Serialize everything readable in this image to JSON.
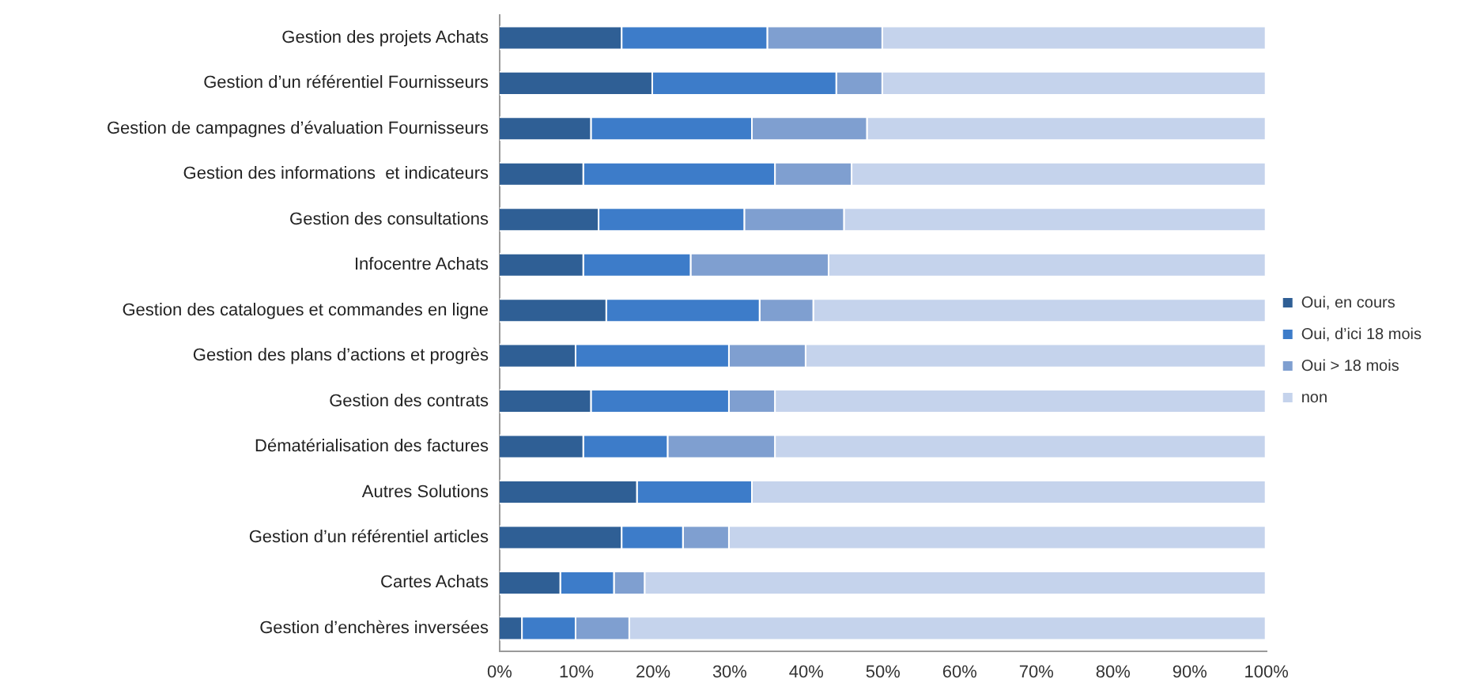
{
  "chart_data": {
    "type": "bar",
    "orientation": "horizontal",
    "stacked": true,
    "categories": [
      "Gestion des projets Achats",
      "Gestion d’un référentiel Fournisseurs",
      "Gestion de campagnes d’évaluation Fournisseurs",
      "Gestion des informations  et indicateurs",
      "Gestion des consultations",
      "Infocentre Achats",
      "Gestion des catalogues et commandes en ligne",
      "Gestion des plans d’actions et progrès",
      "Gestion des contrats",
      "Dématérialisation des factures",
      "Autres Solutions",
      "Gestion d’un référentiel articles",
      "Cartes Achats",
      "Gestion d’enchères inversées"
    ],
    "series": [
      {
        "name": "Oui, en cours",
        "color": "#2f5f95",
        "values": [
          16,
          20,
          12,
          11,
          13,
          11,
          14,
          10,
          12,
          11,
          18,
          16,
          8,
          3
        ]
      },
      {
        "name": "Oui, d’ici 18 mois",
        "color": "#3d7cc9",
        "values": [
          19,
          24,
          21,
          25,
          19,
          14,
          20,
          20,
          18,
          11,
          15,
          8,
          7,
          7
        ]
      },
      {
        "name": "Oui > 18 mois",
        "color": "#7f9fd0",
        "values": [
          15,
          6,
          15,
          10,
          13,
          18,
          7,
          10,
          6,
          14,
          0,
          6,
          4,
          7
        ]
      },
      {
        "name": "non",
        "color": "#c5d3ec",
        "values": [
          50,
          50,
          52,
          54,
          55,
          57,
          59,
          60,
          64,
          64,
          67,
          70,
          81,
          83
        ]
      }
    ],
    "xlim": [
      0,
      100
    ],
    "xticks": [
      {
        "value": 0,
        "label": "0%"
      },
      {
        "value": 10,
        "label": "10%"
      },
      {
        "value": 20,
        "label": "20%"
      },
      {
        "value": 30,
        "label": "30%"
      },
      {
        "value": 40,
        "label": "40%"
      },
      {
        "value": 50,
        "label": "50%"
      },
      {
        "value": 60,
        "label": "60%"
      },
      {
        "value": 70,
        "label": "70%"
      },
      {
        "value": 80,
        "label": "80%"
      },
      {
        "value": 90,
        "label": "90%"
      },
      {
        "value": 100,
        "label": "100%"
      }
    ],
    "grid": false,
    "legend": "right"
  }
}
